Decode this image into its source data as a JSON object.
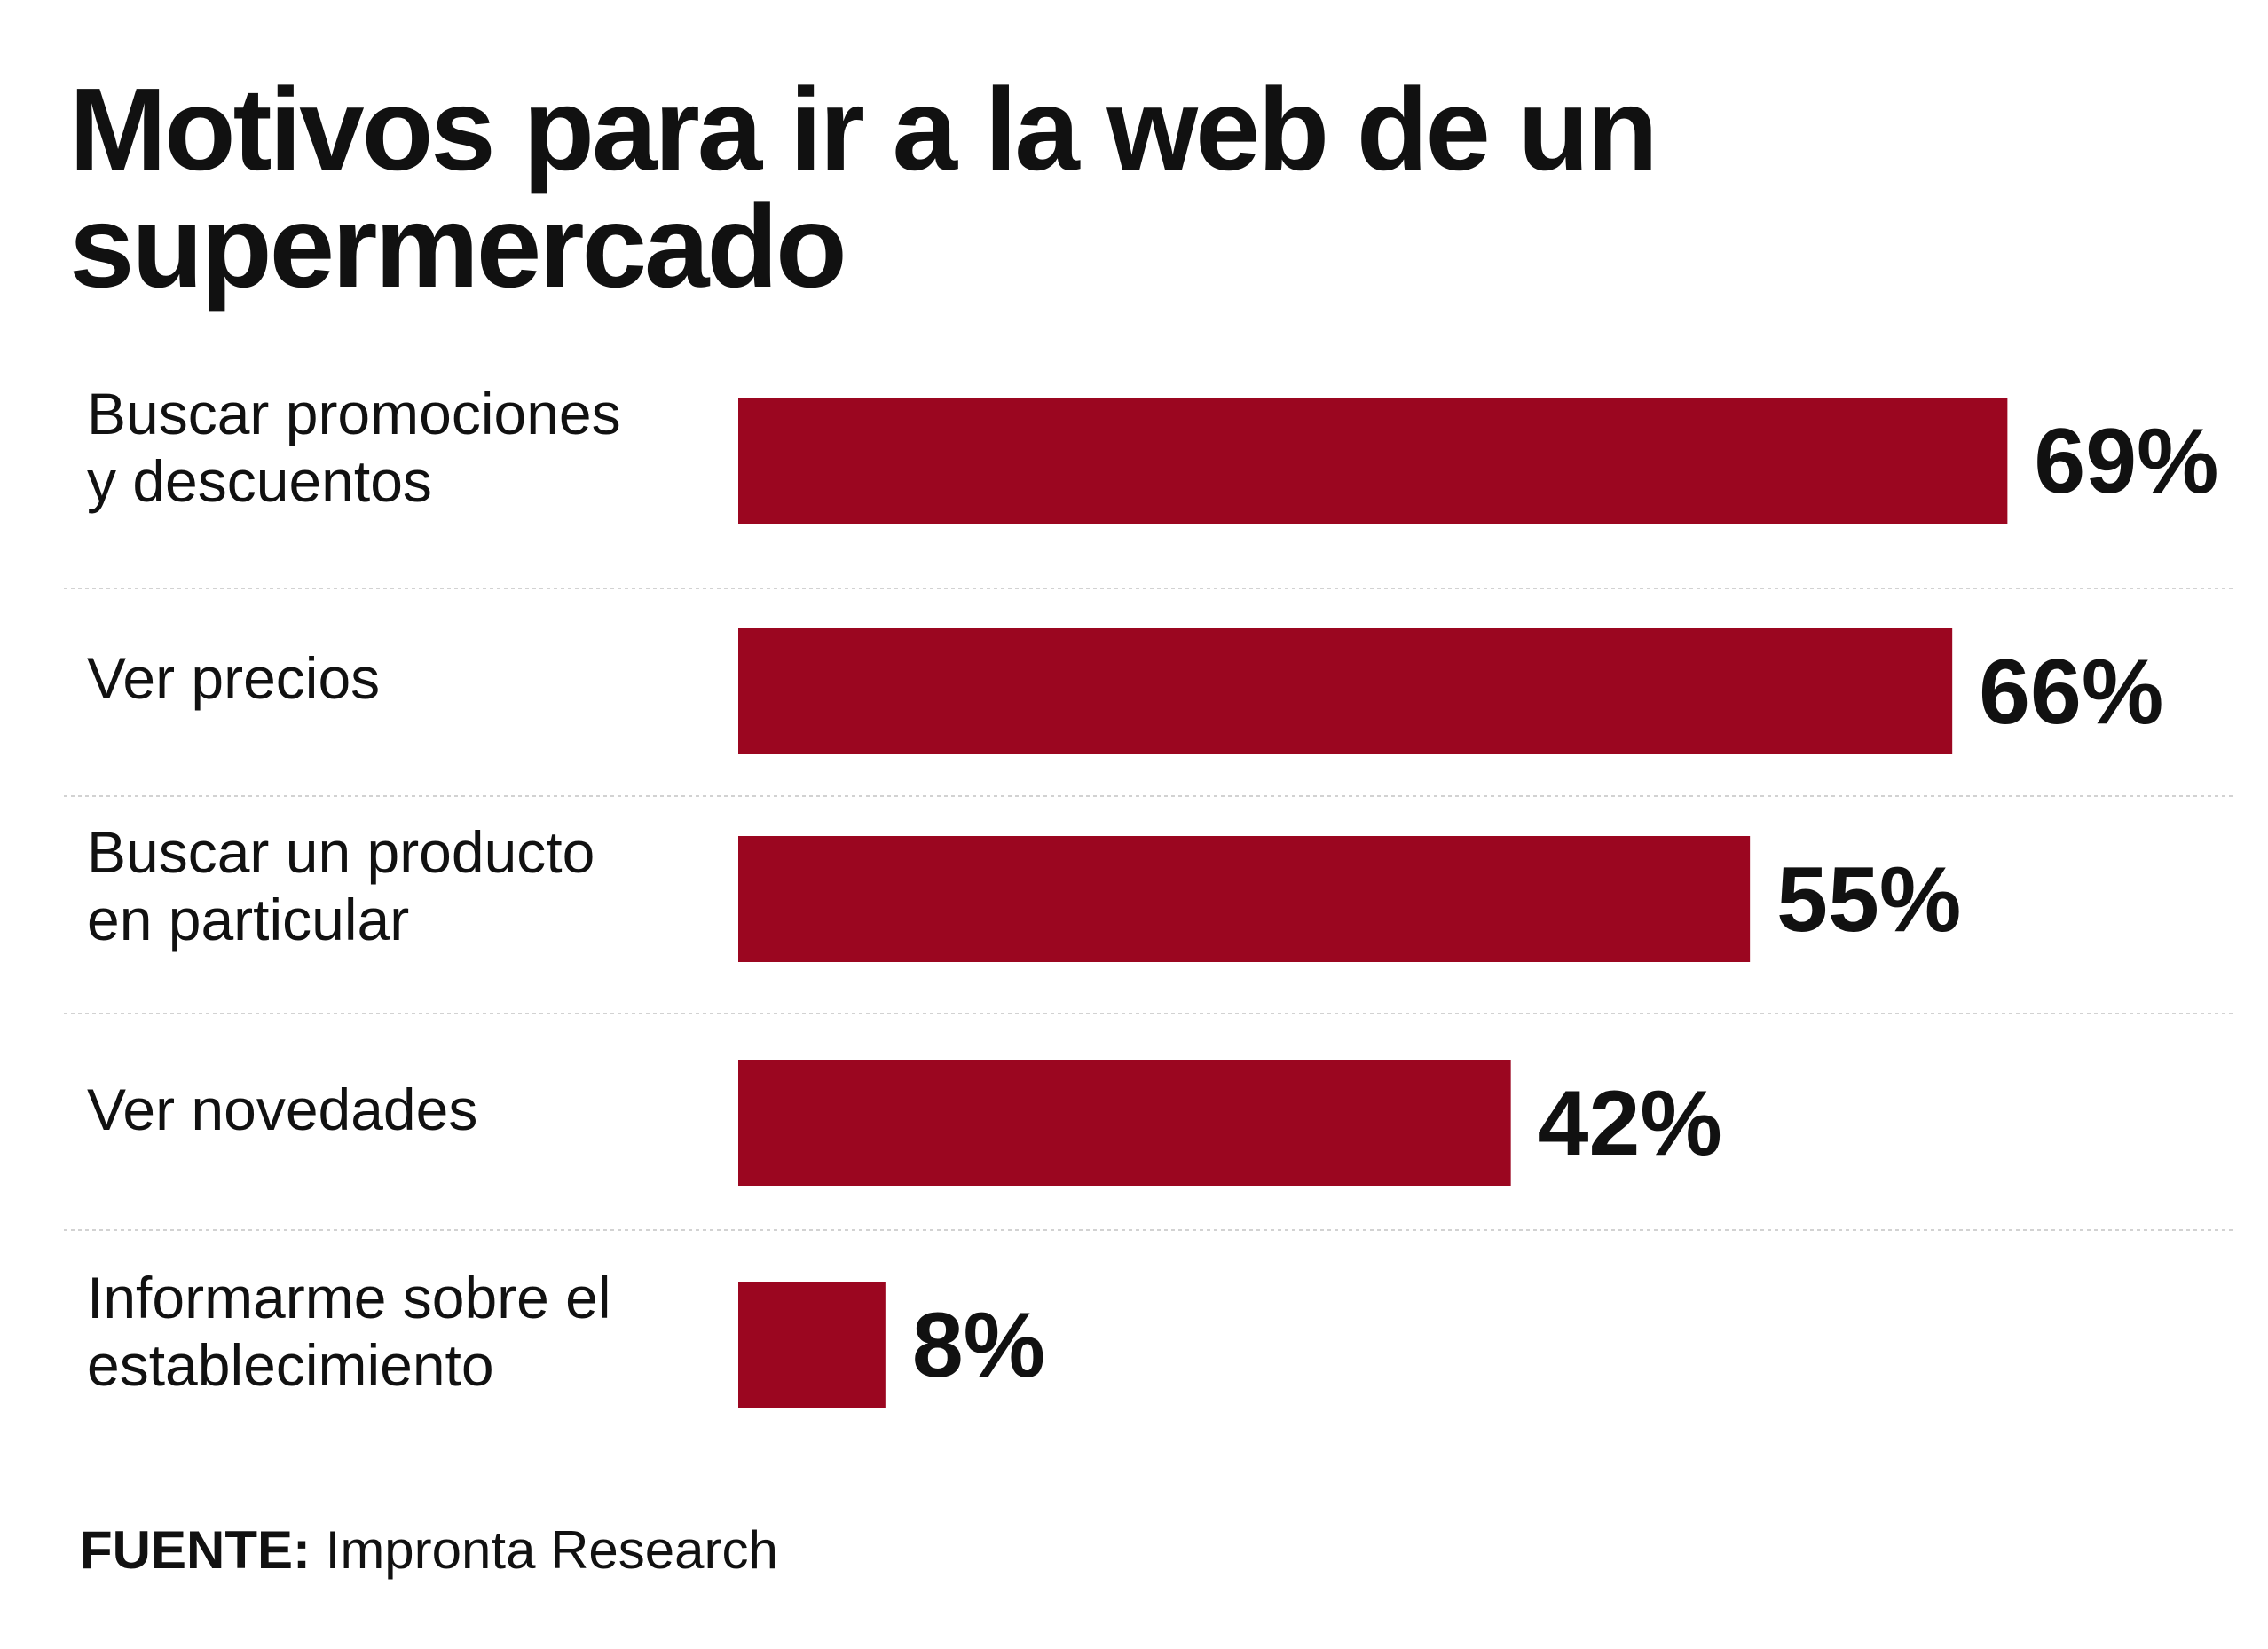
{
  "chart_data": {
    "type": "bar",
    "orientation": "horizontal",
    "title": "Motivos para ir a la web de un supermercado",
    "categories": [
      [
        "Buscar promociones",
        "y descuentos"
      ],
      [
        "Ver precios"
      ],
      [
        "Buscar un producto",
        "en particular"
      ],
      [
        "Ver novedades"
      ],
      [
        "Informarme sobre el",
        "establecimiento"
      ]
    ],
    "values": [
      69,
      66,
      55,
      42,
      8
    ],
    "value_labels": [
      "69%",
      "66%",
      "55%",
      "42%",
      "8%"
    ],
    "xlim": [
      0,
      100
    ],
    "unit": "%",
    "bar_color": "#9b0620",
    "gridlines": false,
    "legend": "none"
  },
  "source": {
    "label": "FUENTE:",
    "text": "Impronta Research"
  }
}
